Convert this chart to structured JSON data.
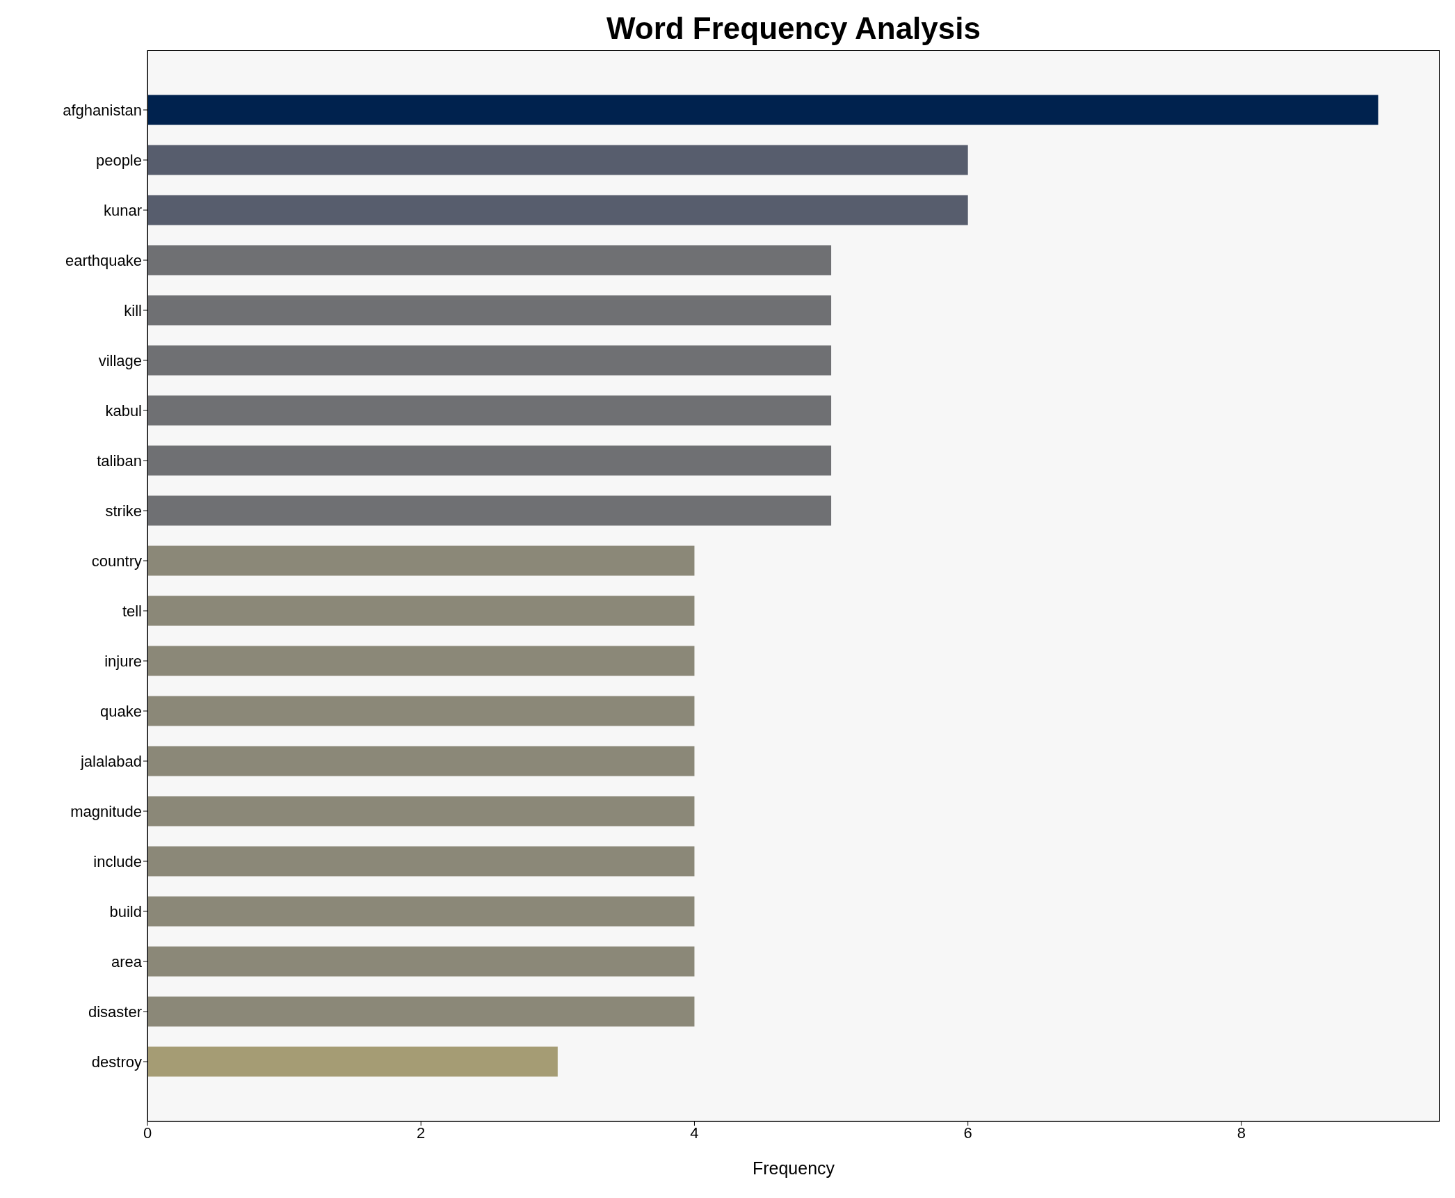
{
  "chart_data": {
    "type": "bar",
    "orientation": "horizontal",
    "title": "Word Frequency Analysis",
    "xlabel": "Frequency",
    "categories": [
      "afghanistan",
      "people",
      "kunar",
      "earthquake",
      "kill",
      "village",
      "kabul",
      "taliban",
      "strike",
      "country",
      "tell",
      "injure",
      "quake",
      "jalalabad",
      "magnitude",
      "include",
      "build",
      "area",
      "disaster",
      "destroy"
    ],
    "values": [
      9,
      6,
      6,
      5,
      5,
      5,
      5,
      5,
      5,
      4,
      4,
      4,
      4,
      4,
      4,
      4,
      4,
      4,
      4,
      3
    ],
    "colors": [
      "#00224e",
      "#575d6d",
      "#575d6d",
      "#6f7073",
      "#6f7073",
      "#6f7073",
      "#6f7073",
      "#6f7073",
      "#6f7073",
      "#8b8878",
      "#8b8878",
      "#8b8878",
      "#8b8878",
      "#8b8878",
      "#8b8878",
      "#8b8878",
      "#8b8878",
      "#8b8878",
      "#8b8878",
      "#a59c74"
    ],
    "xlim": [
      0,
      9.45
    ],
    "xticks": [
      0,
      2,
      4,
      6,
      8
    ]
  }
}
